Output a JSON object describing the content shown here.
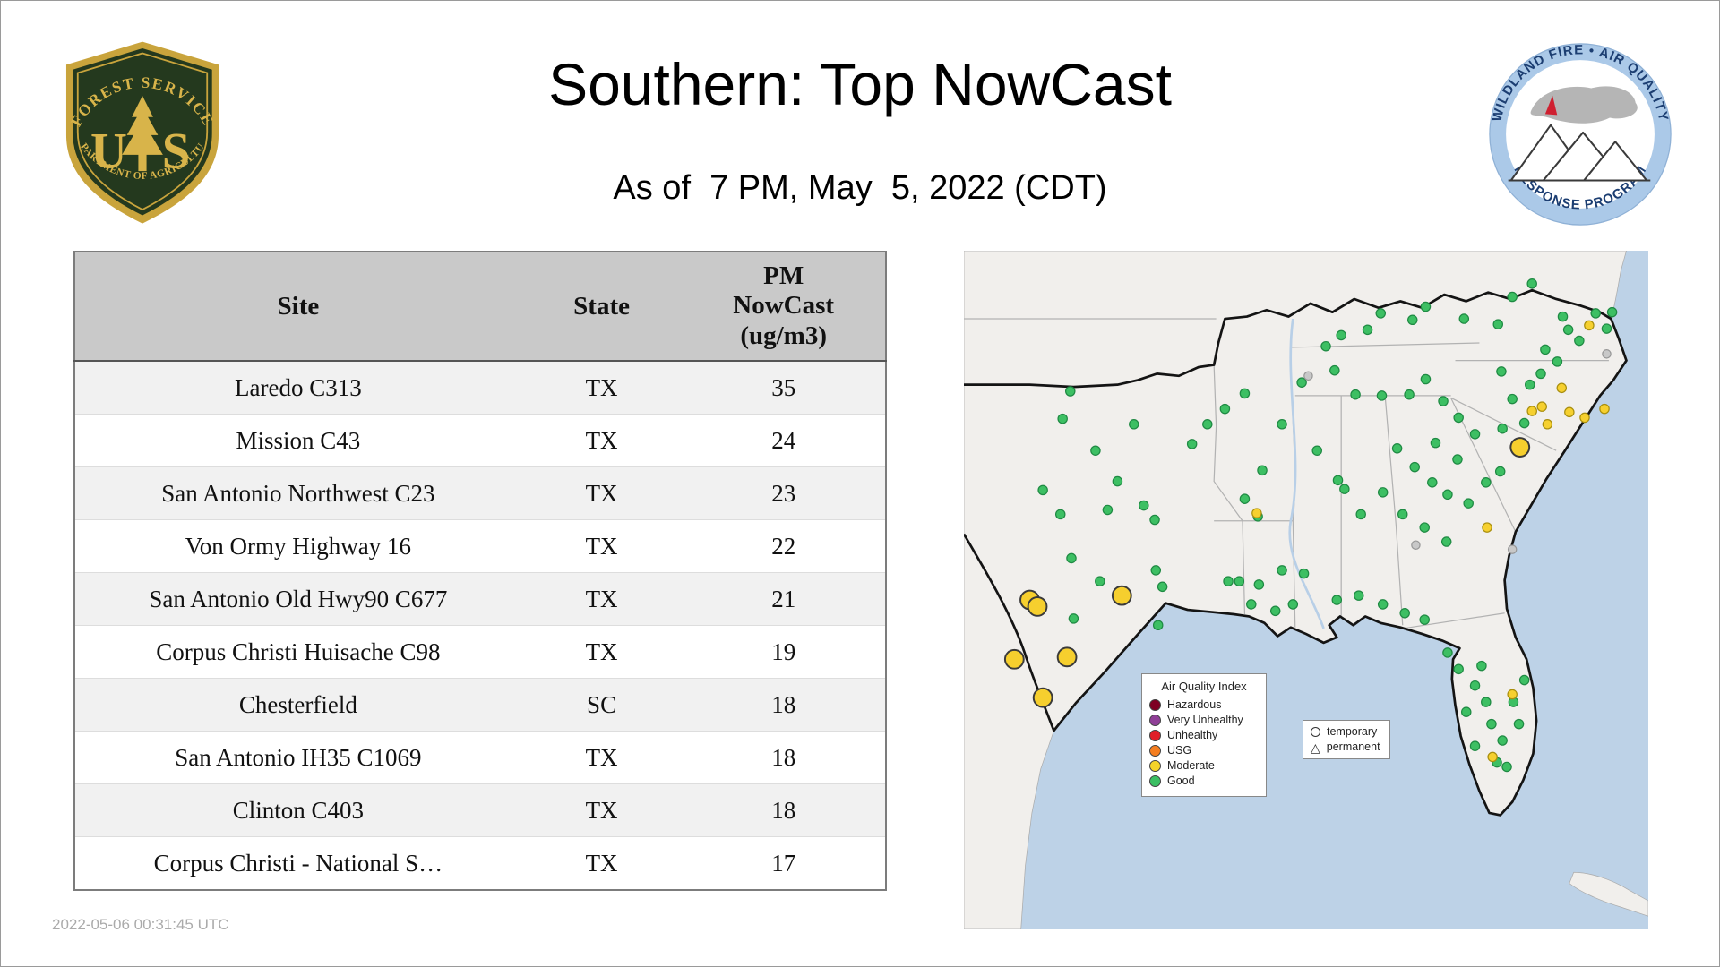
{
  "header": {
    "title": "Southern: Top NowCast",
    "subtitle": "As of  7 PM, May  5, 2022 (CDT)"
  },
  "logos": {
    "forest_service": {
      "top_text": "FOREST SERVICE",
      "letter_u": "U",
      "letter_s": "S",
      "bottom_text": "DEPARTMENT OF AGRICULTURE"
    },
    "wfaqrp": {
      "top_text": "WILDLAND FIRE • AIR QUALITY",
      "bottom_text": "RESPONSE PROGRAM"
    }
  },
  "table": {
    "columns": [
      "Site",
      "State",
      "PM NowCast (ug/m3)"
    ],
    "rows": [
      {
        "site": "Laredo C313",
        "state": "TX",
        "value": "35"
      },
      {
        "site": "Mission C43",
        "state": "TX",
        "value": "24"
      },
      {
        "site": "San Antonio Northwest C23",
        "state": "TX",
        "value": "23"
      },
      {
        "site": "Von Ormy Highway 16",
        "state": "TX",
        "value": "22"
      },
      {
        "site": "San Antonio Old Hwy90 C677",
        "state": "TX",
        "value": "21"
      },
      {
        "site": "Corpus Christi Huisache C98",
        "state": "TX",
        "value": "19"
      },
      {
        "site": "Chesterfield",
        "state": "SC",
        "value": "18"
      },
      {
        "site": "San Antonio IH35 C1069",
        "state": "TX",
        "value": "18"
      },
      {
        "site": "Clinton C403",
        "state": "TX",
        "value": "18"
      },
      {
        "site": "Corpus Christi - National S…",
        "state": "TX",
        "value": "17"
      }
    ]
  },
  "footer": {
    "timestamp": "2022-05-06 00:31:45 UTC"
  },
  "map": {
    "legend": {
      "title": "Air Quality Index",
      "items": [
        {
          "label": "Hazardous",
          "color": "#7e0023"
        },
        {
          "label": "Very Unhealthy",
          "color": "#8f3f97"
        },
        {
          "label": "Unhealthy",
          "color": "#e02028"
        },
        {
          "label": "USG",
          "color": "#f57e20"
        },
        {
          "label": "Moderate",
          "color": "#f5d328"
        },
        {
          "label": "Good",
          "color": "#3bbf63"
        }
      ]
    },
    "symbol_legend": {
      "temporary": "temporary",
      "permanent": "permanent"
    },
    "colors": {
      "water": "#bdd2e7",
      "land": "#f1efec",
      "region_outline": "#141414",
      "state_line": "#b2b2b2",
      "good": {
        "fill": "#3dbf63",
        "stroke": "#1f8a43"
      },
      "moderate": {
        "fill": "#f6d02f",
        "stroke": "#a98f0e"
      },
      "temporary": {
        "fill": "#f6cf2e",
        "stroke": "#3a3a3a"
      },
      "inactive": {
        "fill": "#c8c8c8",
        "stroke": "#979797"
      }
    },
    "markers": {
      "good": [
        [
          97,
          128
        ],
        [
          90,
          153
        ],
        [
          155,
          158
        ],
        [
          208,
          176
        ],
        [
          72,
          218
        ],
        [
          88,
          240
        ],
        [
          131,
          236
        ],
        [
          164,
          232
        ],
        [
          174,
          245
        ],
        [
          98,
          280
        ],
        [
          124,
          301
        ],
        [
          175,
          291
        ],
        [
          181,
          306
        ],
        [
          100,
          335
        ],
        [
          177,
          341
        ],
        [
          241,
          301
        ],
        [
          120,
          182
        ],
        [
          140,
          210
        ],
        [
          222,
          158
        ],
        [
          238,
          144
        ],
        [
          256,
          130
        ],
        [
          256,
          226
        ],
        [
          268,
          242
        ],
        [
          251,
          301
        ],
        [
          269,
          304
        ],
        [
          290,
          291
        ],
        [
          310,
          294
        ],
        [
          322,
          182
        ],
        [
          341,
          209
        ],
        [
          347,
          217
        ],
        [
          330,
          87
        ],
        [
          344,
          77
        ],
        [
          368,
          72
        ],
        [
          308,
          120
        ],
        [
          290,
          158
        ],
        [
          272,
          200
        ],
        [
          380,
          57
        ],
        [
          409,
          63
        ],
        [
          421,
          51
        ],
        [
          456,
          62
        ],
        [
          487,
          67
        ],
        [
          338,
          109
        ],
        [
          357,
          131
        ],
        [
          381,
          132
        ],
        [
          500,
          42
        ],
        [
          518,
          30
        ],
        [
          406,
          131
        ],
        [
          421,
          117
        ],
        [
          437,
          137
        ],
        [
          451,
          152
        ],
        [
          466,
          167
        ],
        [
          411,
          197
        ],
        [
          427,
          211
        ],
        [
          441,
          222
        ],
        [
          476,
          211
        ],
        [
          489,
          201
        ],
        [
          491,
          162
        ],
        [
          430,
          175
        ],
        [
          450,
          190
        ],
        [
          400,
          240
        ],
        [
          420,
          252
        ],
        [
          440,
          265
        ],
        [
          460,
          230
        ],
        [
          382,
          220
        ],
        [
          362,
          240
        ],
        [
          395,
          180
        ],
        [
          511,
          157
        ],
        [
          516,
          122
        ],
        [
          526,
          112
        ],
        [
          541,
          101
        ],
        [
          551,
          72
        ],
        [
          561,
          82
        ],
        [
          576,
          57
        ],
        [
          586,
          71
        ],
        [
          591,
          56
        ],
        [
          530,
          90
        ],
        [
          546,
          60
        ],
        [
          500,
          135
        ],
        [
          490,
          110
        ],
        [
          300,
          322
        ],
        [
          340,
          318
        ],
        [
          360,
          314
        ],
        [
          382,
          322
        ],
        [
          402,
          330
        ],
        [
          420,
          336
        ],
        [
          284,
          328
        ],
        [
          262,
          322
        ],
        [
          441,
          366
        ],
        [
          451,
          381
        ],
        [
          466,
          396
        ],
        [
          476,
          411
        ],
        [
          481,
          431
        ],
        [
          491,
          446
        ],
        [
          466,
          451
        ],
        [
          501,
          411
        ],
        [
          511,
          391
        ],
        [
          506,
          431
        ],
        [
          486,
          466
        ],
        [
          472,
          378
        ],
        [
          458,
          420
        ],
        [
          495,
          470
        ]
      ],
      "moderate": [
        [
          527,
          142
        ],
        [
          552,
          147
        ],
        [
          566,
          152
        ],
        [
          584,
          144
        ],
        [
          532,
          158
        ],
        [
          570,
          68
        ],
        [
          477,
          252
        ],
        [
          267,
          239
        ],
        [
          500,
          404
        ],
        [
          482,
          461
        ],
        [
          545,
          125
        ],
        [
          518,
          146
        ]
      ],
      "temporary_moderate": [
        [
          60,
          318
        ],
        [
          67,
          324
        ],
        [
          144,
          314
        ],
        [
          94,
          370
        ],
        [
          46,
          372
        ],
        [
          72,
          407
        ],
        [
          507,
          179
        ]
      ],
      "inactive": [
        [
          314,
          114
        ],
        [
          412,
          268
        ],
        [
          586,
          94
        ],
        [
          500,
          272
        ]
      ]
    }
  },
  "chart_data": {
    "type": "table",
    "title": "Southern: Top NowCast",
    "subtitle": "As of  7 PM, May  5, 2022 (CDT)",
    "columns": [
      "Site",
      "State",
      "PM NowCast (ug/m3)"
    ],
    "rows": [
      [
        "Laredo C313",
        "TX",
        35
      ],
      [
        "Mission C43",
        "TX",
        24
      ],
      [
        "San Antonio Northwest C23",
        "TX",
        23
      ],
      [
        "Von Ormy Highway 16",
        "TX",
        22
      ],
      [
        "San Antonio Old Hwy90 C677",
        "TX",
        21
      ],
      [
        "Corpus Christi Huisache C98",
        "TX",
        19
      ],
      [
        "Chesterfield",
        "SC",
        18
      ],
      [
        "San Antonio IH35 C1069",
        "TX",
        18
      ],
      [
        "Clinton C403",
        "TX",
        18
      ],
      [
        "Corpus Christi - National S…",
        "TX",
        17
      ]
    ]
  }
}
